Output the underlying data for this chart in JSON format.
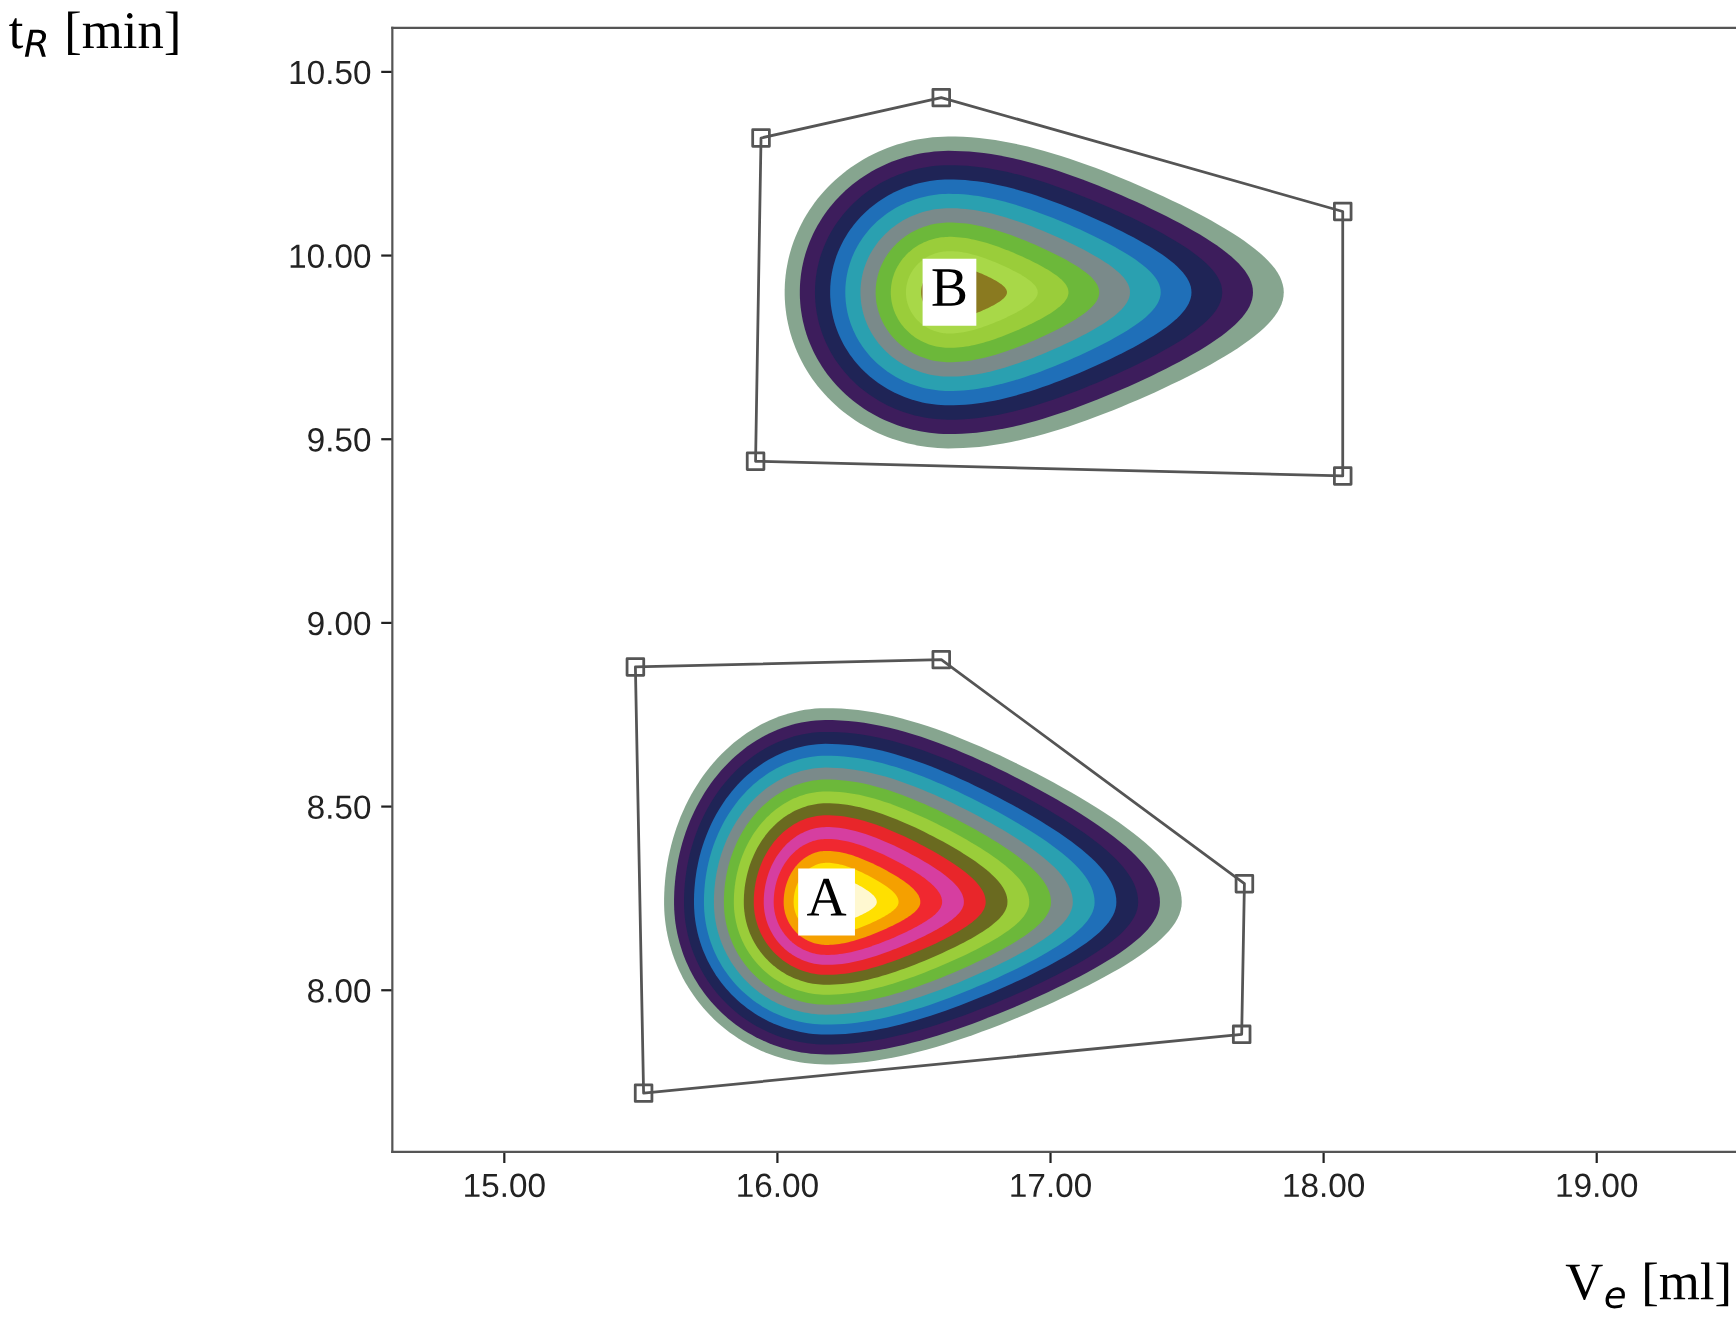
{
  "chart_data": {
    "type": "scatter",
    "xlabel": "V$_{e}$ [ml]",
    "ylabel": "t$_{R}$ [min]",
    "xlim": [
      14.59,
      19.51
    ],
    "ylim": [
      7.56,
      10.62
    ],
    "xticks": [
      {
        "value": 15,
        "label": "15.00"
      },
      {
        "value": 16,
        "label": "16.00"
      },
      {
        "value": 17,
        "label": "17.00"
      },
      {
        "value": 18,
        "label": "18.00"
      },
      {
        "value": 19,
        "label": "19.00"
      }
    ],
    "yticks": [
      {
        "value": 8,
        "label": "8.00"
      },
      {
        "value": 8.5,
        "label": "8.50"
      },
      {
        "value": 9,
        "label": "9.00"
      },
      {
        "value": 9.5,
        "label": "9.50"
      },
      {
        "value": 10,
        "label": "10.00"
      },
      {
        "value": 10.5,
        "label": "10.50"
      }
    ],
    "marker": "square",
    "grid": false,
    "series": [
      {
        "color": "#555555",
        "x": [
          15.94,
          16.6,
          18.07,
          18.07,
          15.92
        ],
        "values": [
          10.32,
          10.43,
          10.12,
          9.4,
          9.44
        ]
      },
      {
        "color": "#555555",
        "x": [
          15.48,
          16.6,
          17.71,
          17.7,
          15.51
        ],
        "values": [
          8.88,
          8.9,
          8.29,
          7.88,
          7.72
        ]
      }
    ],
    "annotations": [
      {
        "text": "B",
        "x": 16.63,
        "y": 9.9
      },
      {
        "text": "A",
        "x": 16.18,
        "y": 8.24
      }
    ]
  }
}
